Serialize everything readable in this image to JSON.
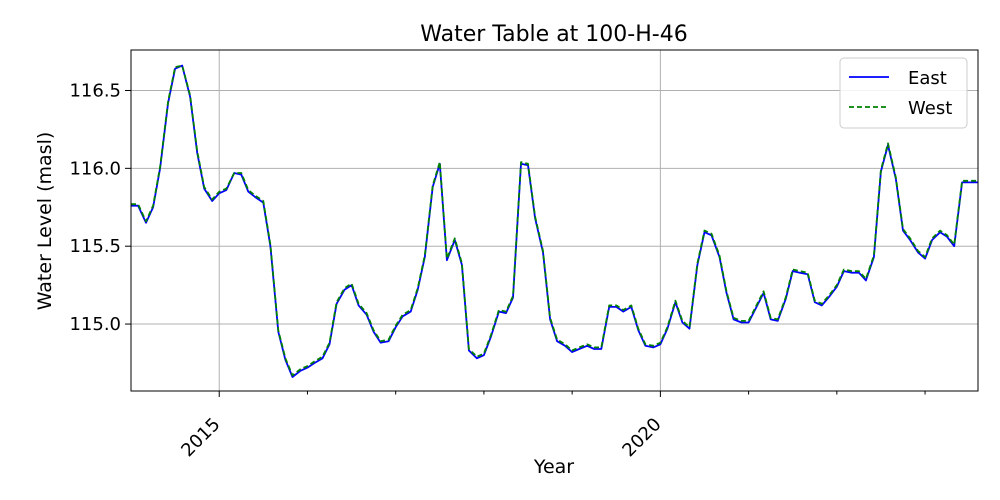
{
  "chart_data": {
    "type": "line",
    "title": "Water Table at 100-H-46",
    "xlabel": "Year",
    "ylabel": "Water Level (masl)",
    "xlim": [
      2014.0,
      2023.6
    ],
    "ylim": [
      114.57,
      116.76
    ],
    "x_ticks": [
      {
        "value": 2015,
        "label": "2015"
      },
      {
        "value": 2020,
        "label": "2020"
      }
    ],
    "x_minor_ticks": [
      2016,
      2017,
      2018,
      2019,
      2021,
      2022,
      2023
    ],
    "y_ticks": [
      {
        "value": 115.0,
        "label": "115.0"
      },
      {
        "value": 115.5,
        "label": "115.5"
      },
      {
        "value": 116.0,
        "label": "116.0"
      },
      {
        "value": 116.5,
        "label": "116.5"
      }
    ],
    "grid": true,
    "legend_position": "top-right",
    "x": [
      2014.0,
      2014.08,
      2014.17,
      2014.25,
      2014.33,
      2014.42,
      2014.5,
      2014.58,
      2014.67,
      2014.75,
      2014.83,
      2014.92,
      2015.0,
      2015.08,
      2015.17,
      2015.25,
      2015.33,
      2015.42,
      2015.5,
      2015.58,
      2015.67,
      2015.75,
      2015.83,
      2015.92,
      2016.0,
      2016.08,
      2016.17,
      2016.25,
      2016.33,
      2016.42,
      2016.5,
      2016.58,
      2016.67,
      2016.75,
      2016.83,
      2016.92,
      2017.0,
      2017.08,
      2017.17,
      2017.25,
      2017.33,
      2017.42,
      2017.5,
      2017.58,
      2017.67,
      2017.75,
      2017.83,
      2017.92,
      2018.0,
      2018.08,
      2018.17,
      2018.25,
      2018.33,
      2018.42,
      2018.5,
      2018.58,
      2018.67,
      2018.75,
      2018.83,
      2018.92,
      2019.0,
      2019.08,
      2019.17,
      2019.25,
      2019.33,
      2019.42,
      2019.5,
      2019.58,
      2019.67,
      2019.75,
      2019.83,
      2019.92,
      2020.0,
      2020.08,
      2020.17,
      2020.25,
      2020.33,
      2020.42,
      2020.5,
      2020.58,
      2020.67,
      2020.75,
      2020.83,
      2020.92,
      2021.0,
      2021.08,
      2021.17,
      2021.25,
      2021.33,
      2021.42,
      2021.5,
      2021.58,
      2021.67,
      2021.75,
      2021.83,
      2021.92,
      2022.0,
      2022.08,
      2022.17,
      2022.25,
      2022.33,
      2022.42,
      2022.5,
      2022.58,
      2022.67,
      2022.75,
      2022.83,
      2022.92,
      2023.0,
      2023.08,
      2023.17,
      2023.25,
      2023.33,
      2023.42,
      2023.5,
      2023.6
    ],
    "series": [
      {
        "name": "East",
        "color": "#0000ff",
        "style": "solid",
        "values": [
          115.76,
          115.76,
          115.65,
          115.75,
          116.0,
          116.42,
          116.64,
          116.66,
          116.46,
          116.1,
          115.87,
          115.79,
          115.84,
          115.86,
          115.97,
          115.96,
          115.85,
          115.81,
          115.78,
          115.5,
          114.95,
          114.77,
          114.66,
          114.7,
          114.72,
          114.75,
          114.78,
          114.87,
          115.13,
          115.22,
          115.25,
          115.12,
          115.06,
          114.95,
          114.88,
          114.89,
          114.98,
          115.05,
          115.08,
          115.22,
          115.43,
          115.88,
          116.03,
          115.41,
          115.54,
          115.38,
          114.83,
          114.78,
          114.8,
          114.92,
          115.08,
          115.07,
          115.17,
          116.03,
          116.02,
          115.68,
          115.46,
          115.03,
          114.89,
          114.86,
          114.82,
          114.84,
          114.86,
          114.84,
          114.84,
          115.11,
          115.11,
          115.08,
          115.11,
          114.96,
          114.86,
          114.85,
          114.87,
          114.97,
          115.14,
          115.01,
          114.97,
          115.38,
          115.59,
          115.57,
          115.43,
          115.2,
          115.03,
          115.01,
          115.01,
          115.1,
          115.2,
          115.03,
          115.02,
          115.16,
          115.34,
          115.33,
          115.32,
          115.14,
          115.12,
          115.18,
          115.24,
          115.34,
          115.33,
          115.33,
          115.28,
          115.43,
          115.98,
          116.15,
          115.93,
          115.6,
          115.54,
          115.46,
          115.42,
          115.54,
          115.59,
          115.56,
          115.5,
          115.91,
          115.91,
          115.91
        ]
      },
      {
        "name": "West",
        "color": "#008000",
        "style": "dashed",
        "values": [
          115.77,
          115.77,
          115.66,
          115.76,
          116.01,
          116.43,
          116.65,
          116.66,
          116.47,
          116.11,
          115.88,
          115.8,
          115.85,
          115.87,
          115.97,
          115.97,
          115.86,
          115.82,
          115.79,
          115.51,
          114.96,
          114.78,
          114.67,
          114.71,
          114.73,
          114.76,
          114.79,
          114.88,
          115.14,
          115.23,
          115.26,
          115.13,
          115.07,
          114.96,
          114.89,
          114.9,
          114.99,
          115.06,
          115.09,
          115.23,
          115.44,
          115.89,
          116.04,
          115.42,
          115.55,
          115.39,
          114.84,
          114.79,
          114.81,
          114.93,
          115.09,
          115.08,
          115.18,
          116.04,
          116.03,
          115.69,
          115.47,
          115.04,
          114.9,
          114.87,
          114.83,
          114.85,
          114.87,
          114.85,
          114.85,
          115.12,
          115.12,
          115.09,
          115.12,
          114.97,
          114.87,
          114.86,
          114.88,
          114.98,
          115.15,
          115.02,
          114.98,
          115.39,
          115.6,
          115.58,
          115.44,
          115.21,
          115.04,
          115.02,
          115.02,
          115.11,
          115.21,
          115.04,
          115.03,
          115.17,
          115.35,
          115.34,
          115.33,
          115.15,
          115.13,
          115.19,
          115.25,
          115.35,
          115.34,
          115.34,
          115.29,
          115.44,
          115.99,
          116.16,
          115.94,
          115.61,
          115.55,
          115.47,
          115.43,
          115.55,
          115.6,
          115.57,
          115.51,
          115.92,
          115.92,
          115.92
        ]
      }
    ]
  }
}
